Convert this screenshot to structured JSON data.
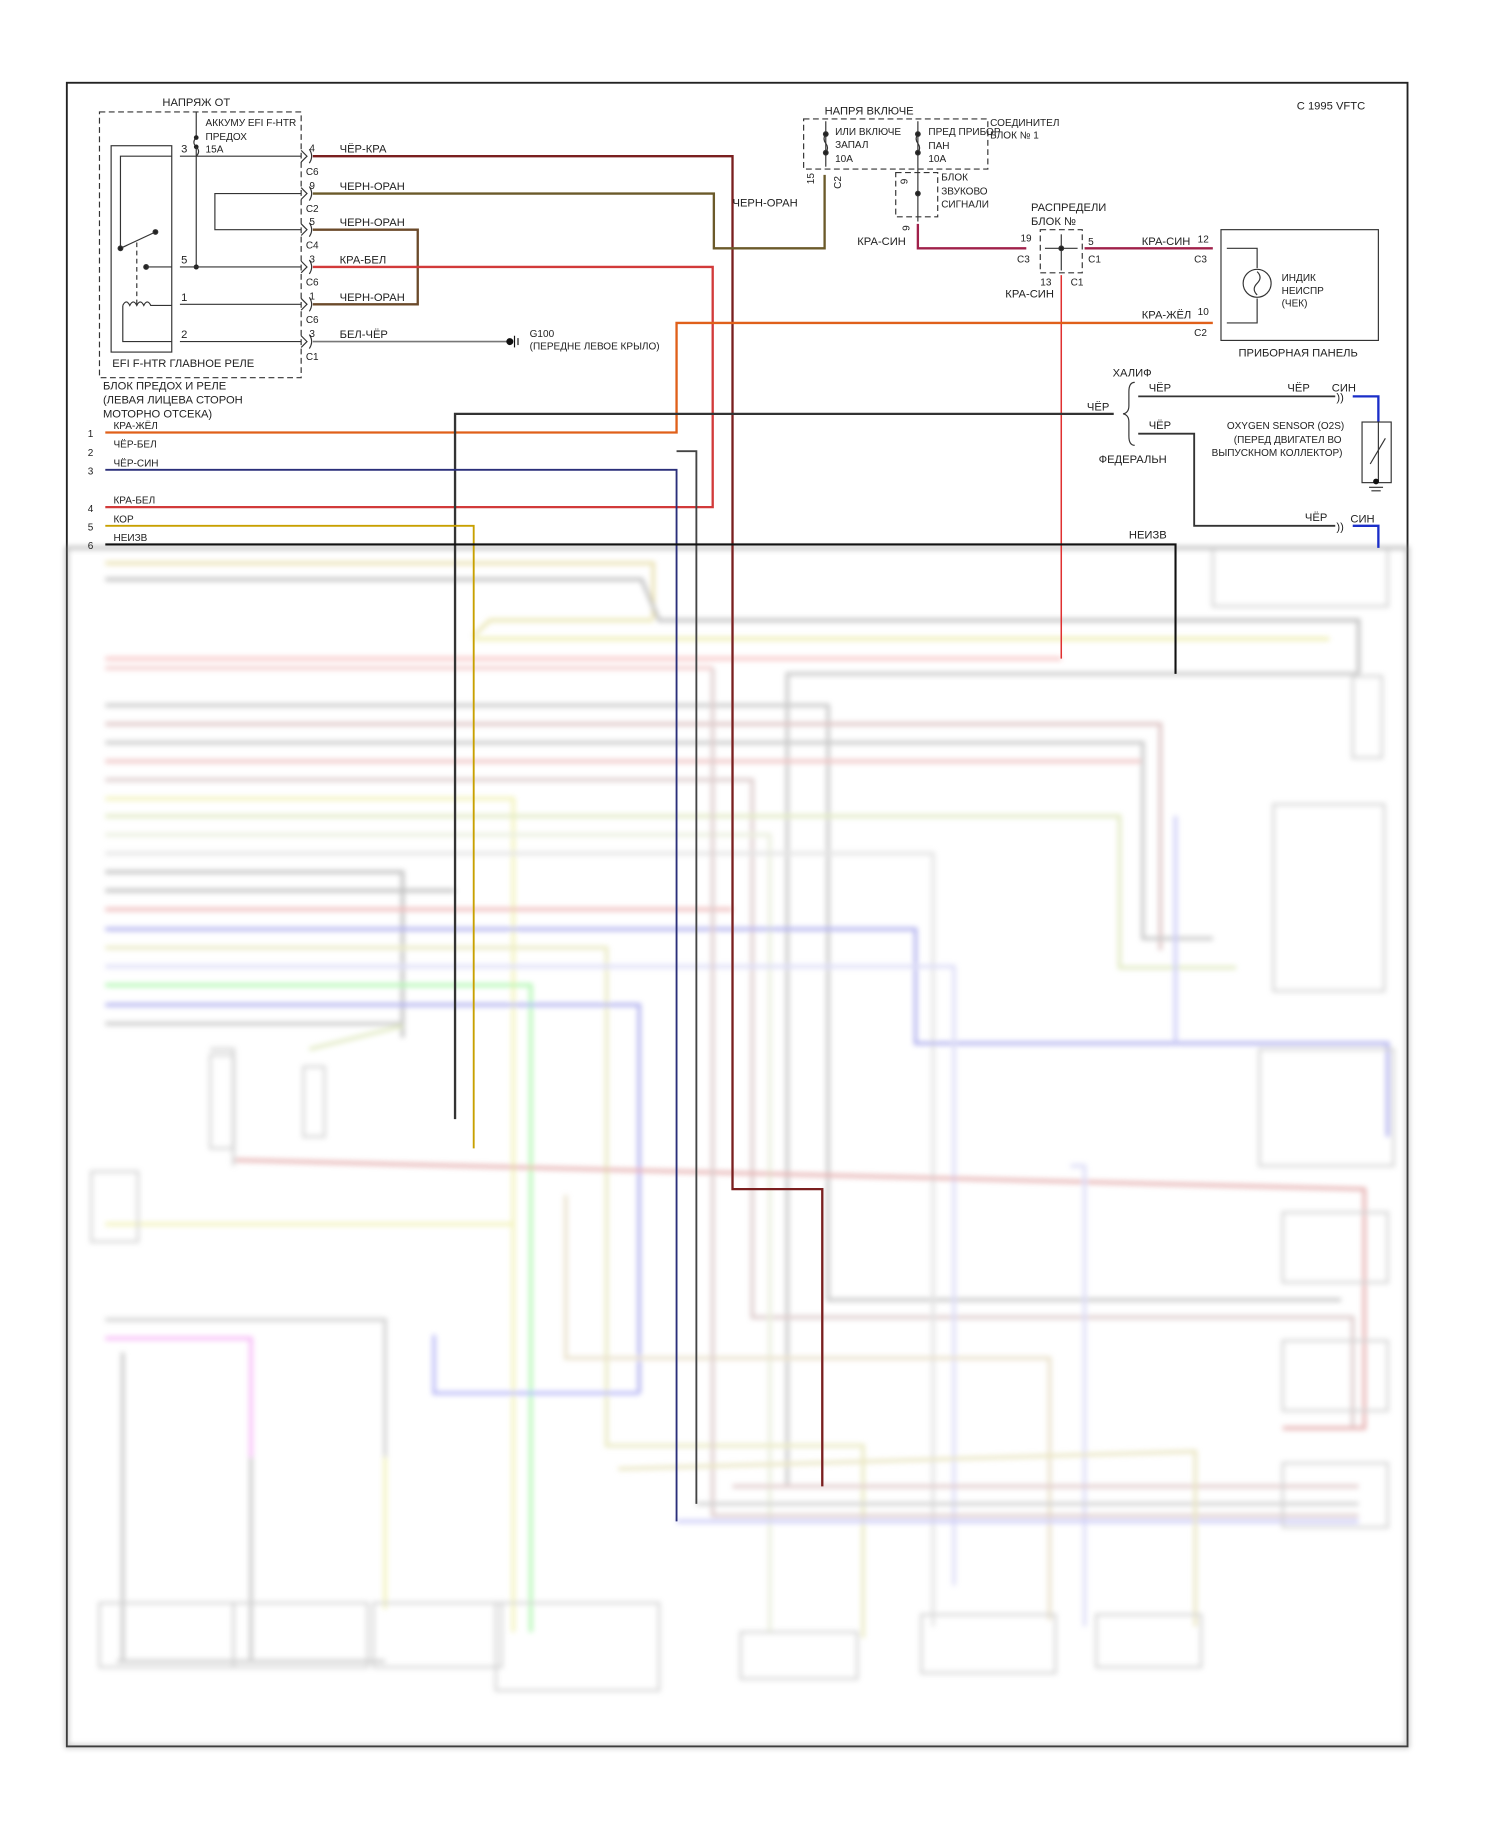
{
  "copyright": "C  1995 VFTC",
  "relay_block": {
    "supply_label": "НАПРЯЖ ОТ",
    "fuse_label": [
      "АККУМУ EFI F-HTR",
      "ПРЕДОХ",
      "15A"
    ],
    "relay_name": "EFI F-HTR ГЛАВНОЕ РЕЛЕ",
    "block_name": [
      "БЛОК ПРЕДОХ И РЕЛЕ",
      "(ЛЕВАЯ ЛИЦЕВА СТОРОН",
      "МОТОРНО ОТСЕКА)"
    ],
    "relay_pins": [
      "3",
      "5",
      "1",
      "2"
    ]
  },
  "relay_connectors": [
    {
      "pin": "4",
      "connector": "C6",
      "wire": "ЧЁР-КРА"
    },
    {
      "pin": "9",
      "connector": "C2",
      "wire": "ЧЕРН-ОРАН"
    },
    {
      "pin": "5",
      "connector": "C4",
      "wire": "ЧЕРН-ОРАН"
    },
    {
      "pin": "3",
      "connector": "C6",
      "wire": "КРА-БЕЛ"
    },
    {
      "pin": "1",
      "connector": "C6",
      "wire": "ЧЕРН-ОРАН"
    },
    {
      "pin": "3",
      "connector": "C1",
      "wire": "БЕЛ-ЧЁР"
    }
  ],
  "ground": {
    "id": "G100",
    "location": "(ПЕРЕДНЕ ЛЕВОЕ КРЫЛО)"
  },
  "junction_block": {
    "supply_label": "НАПРЯ ВКЛЮЧЕ",
    "fuse1": [
      "ИЛИ ВКЛЮЧЕ",
      "ЗАПАЛ",
      "10A"
    ],
    "fuse2": [
      "ПРЕД ПРИБОР",
      "ПАН",
      "10A"
    ],
    "name": [
      "СОЕДИНИТЕЛ",
      "БЛОК № 1"
    ],
    "pin": "15",
    "connector": "C2",
    "wire": "ЧЕРН-ОРАН"
  },
  "horn_block": {
    "name": [
      "БЛОК",
      "ЗВУКОВО",
      "СИГНАЛИ"
    ],
    "pin_top": "9",
    "pin_bottom": "9",
    "wire": "КРА-СИН"
  },
  "distribution_block": {
    "name": [
      "РАСПРЕДЕЛИ",
      "БЛОК №"
    ],
    "pin_left": "19",
    "conn_left": "C3",
    "pin_right": "5",
    "conn_right": "C1",
    "pin_bottom": "13",
    "conn_bottom": "C1",
    "wire_bottom": "КРА-СИН"
  },
  "instrument_panel": {
    "name": "ПРИБОРНАЯ ПАНЕЛЬ",
    "lamp": [
      "ИНДИК",
      "НЕИСПР",
      "(ЧЕК)"
    ],
    "pin_top": "12",
    "conn_top": "C3",
    "wire_top": "КРА-СИН",
    "pin_bottom": "10",
    "conn_bottom": "C2",
    "wire_bottom": "КРА-ЖЁЛ"
  },
  "oxygen_sensor": {
    "variant_top": "ХАЛИФ",
    "variant_bottom": "ФЕДЕРАЛЬН",
    "wire_in": "ЧЁР",
    "wire_top_left": "ЧЁР",
    "wire_top_right": "ЧЁР",
    "wire_top_sensor": "СИН",
    "wire_bot_left": "ЧЁР",
    "wire_bot_right": "ЧЁР",
    "wire_bot_sensor": "СИН",
    "name": [
      "OXYGEN SENSOR (O2S)",
      "(ПЕРЕД ДВИГАТЕЛ ВО",
      "ВЫПУСКНОМ КОЛЛЕКТОР)"
    ]
  },
  "ecm_pins": [
    {
      "num": "1",
      "wire": "КРА-ЖЁЛ",
      "color": "#e0601a"
    },
    {
      "num": "2",
      "wire": "ЧЁР-БЕЛ",
      "color": "#444444"
    },
    {
      "num": "3",
      "wire": "ЧЁР-СИН",
      "color": "#2a2f7a"
    },
    {
      "num": "4",
      "wire": "КРА-БЕЛ",
      "color": "#d23a3a"
    },
    {
      "num": "5",
      "wire": "КОР",
      "color": "#c8a000"
    },
    {
      "num": "6",
      "wire": "НЕИЗВ",
      "color": "#111111"
    }
  ],
  "neizv_label": "НЕИЗВ",
  "colors": {
    "black_red": "#7a1f1f",
    "black_orange": "#6b5a2a",
    "red_white": "#d23a3a",
    "red_blue": "#a0204a",
    "red_yellow": "#e0601a",
    "blue": "#1a2ec8",
    "red_thin": "#e03030"
  }
}
